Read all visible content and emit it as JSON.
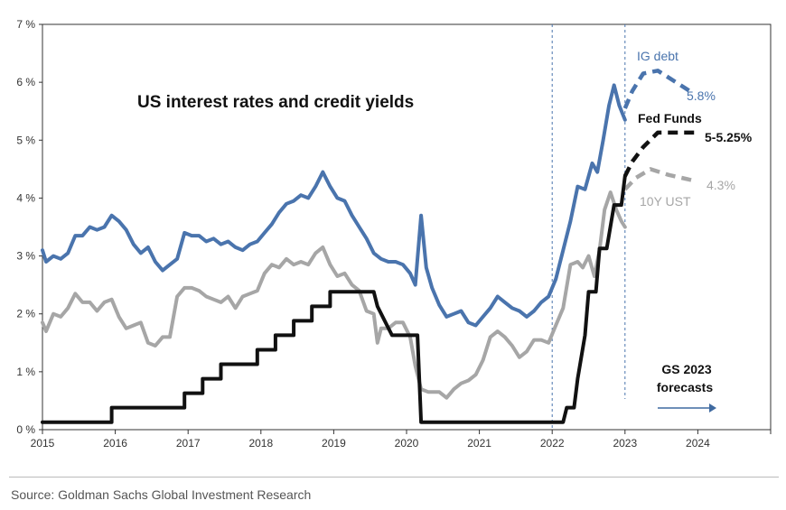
{
  "chart_data": {
    "type": "line",
    "title": "US interest rates and credit yields",
    "xlim": [
      2015,
      2025
    ],
    "ylim": [
      0,
      7
    ],
    "x_ticks": [
      "2015",
      "2016",
      "2017",
      "2018",
      "2019",
      "2020",
      "2021",
      "2022",
      "2023",
      "2024"
    ],
    "y_ticks": [
      "0 %",
      "1 %",
      "2 %",
      "3 %",
      "4 %",
      "5 %",
      "6 %",
      "7 %"
    ],
    "vlines": [
      2022.0,
      2023.0
    ],
    "annotation": {
      "line1": "GS 2023",
      "line2": "forecasts"
    },
    "series": [
      {
        "name": "IG debt",
        "color": "#4a74ad",
        "end_label": "5.8%",
        "values": [
          [
            2015.0,
            3.1
          ],
          [
            2015.05,
            2.9
          ],
          [
            2015.15,
            3.0
          ],
          [
            2015.25,
            2.95
          ],
          [
            2015.35,
            3.05
          ],
          [
            2015.45,
            3.35
          ],
          [
            2015.55,
            3.35
          ],
          [
            2015.65,
            3.5
          ],
          [
            2015.75,
            3.45
          ],
          [
            2015.85,
            3.5
          ],
          [
            2015.95,
            3.7
          ],
          [
            2016.05,
            3.6
          ],
          [
            2016.15,
            3.45
          ],
          [
            2016.25,
            3.2
          ],
          [
            2016.35,
            3.05
          ],
          [
            2016.45,
            3.15
          ],
          [
            2016.55,
            2.9
          ],
          [
            2016.65,
            2.75
          ],
          [
            2016.75,
            2.85
          ],
          [
            2016.85,
            2.95
          ],
          [
            2016.95,
            3.4
          ],
          [
            2017.05,
            3.35
          ],
          [
            2017.15,
            3.35
          ],
          [
            2017.25,
            3.25
          ],
          [
            2017.35,
            3.3
          ],
          [
            2017.45,
            3.2
          ],
          [
            2017.55,
            3.25
          ],
          [
            2017.65,
            3.15
          ],
          [
            2017.75,
            3.1
          ],
          [
            2017.85,
            3.2
          ],
          [
            2017.95,
            3.25
          ],
          [
            2018.05,
            3.4
          ],
          [
            2018.15,
            3.55
          ],
          [
            2018.25,
            3.75
          ],
          [
            2018.35,
            3.9
          ],
          [
            2018.45,
            3.95
          ],
          [
            2018.55,
            4.05
          ],
          [
            2018.65,
            4.0
          ],
          [
            2018.75,
            4.2
          ],
          [
            2018.85,
            4.45
          ],
          [
            2018.95,
            4.2
          ],
          [
            2019.05,
            4.0
          ],
          [
            2019.15,
            3.95
          ],
          [
            2019.25,
            3.7
          ],
          [
            2019.35,
            3.5
          ],
          [
            2019.45,
            3.3
          ],
          [
            2019.55,
            3.05
          ],
          [
            2019.65,
            2.95
          ],
          [
            2019.75,
            2.9
          ],
          [
            2019.85,
            2.9
          ],
          [
            2019.95,
            2.85
          ],
          [
            2020.05,
            2.7
          ],
          [
            2020.12,
            2.5
          ],
          [
            2020.2,
            3.7
          ],
          [
            2020.27,
            2.8
          ],
          [
            2020.35,
            2.45
          ],
          [
            2020.45,
            2.15
          ],
          [
            2020.55,
            1.95
          ],
          [
            2020.65,
            2.0
          ],
          [
            2020.75,
            2.05
          ],
          [
            2020.85,
            1.85
          ],
          [
            2020.95,
            1.8
          ],
          [
            2021.05,
            1.95
          ],
          [
            2021.15,
            2.1
          ],
          [
            2021.25,
            2.3
          ],
          [
            2021.35,
            2.2
          ],
          [
            2021.45,
            2.1
          ],
          [
            2021.55,
            2.05
          ],
          [
            2021.65,
            1.95
          ],
          [
            2021.75,
            2.05
          ],
          [
            2021.85,
            2.2
          ],
          [
            2021.95,
            2.3
          ],
          [
            2022.05,
            2.6
          ],
          [
            2022.15,
            3.1
          ],
          [
            2022.25,
            3.6
          ],
          [
            2022.35,
            4.2
          ],
          [
            2022.45,
            4.15
          ],
          [
            2022.55,
            4.6
          ],
          [
            2022.62,
            4.45
          ],
          [
            2022.7,
            5.0
          ],
          [
            2022.78,
            5.6
          ],
          [
            2022.85,
            5.95
          ],
          [
            2022.92,
            5.6
          ],
          [
            2023.0,
            5.35
          ]
        ],
        "forecast": [
          [
            2023.0,
            5.55
          ],
          [
            2023.1,
            5.85
          ],
          [
            2023.25,
            6.15
          ],
          [
            2023.45,
            6.2
          ],
          [
            2023.7,
            6.0
          ],
          [
            2023.95,
            5.8
          ]
        ]
      },
      {
        "name": "Fed Funds",
        "color": "#111111",
        "end_label": "5-5.25%",
        "values": [
          [
            2015.0,
            0.13
          ],
          [
            2015.95,
            0.13
          ],
          [
            2015.95,
            0.38
          ],
          [
            2016.95,
            0.38
          ],
          [
            2016.95,
            0.63
          ],
          [
            2017.2,
            0.63
          ],
          [
            2017.2,
            0.88
          ],
          [
            2017.45,
            0.88
          ],
          [
            2017.45,
            1.13
          ],
          [
            2017.95,
            1.13
          ],
          [
            2017.95,
            1.38
          ],
          [
            2018.2,
            1.38
          ],
          [
            2018.2,
            1.63
          ],
          [
            2018.45,
            1.63
          ],
          [
            2018.45,
            1.88
          ],
          [
            2018.7,
            1.88
          ],
          [
            2018.7,
            2.13
          ],
          [
            2018.95,
            2.13
          ],
          [
            2018.95,
            2.38
          ],
          [
            2019.55,
            2.38
          ],
          [
            2019.6,
            2.13
          ],
          [
            2019.7,
            1.88
          ],
          [
            2019.8,
            1.63
          ],
          [
            2020.15,
            1.63
          ],
          [
            2020.2,
            0.13
          ],
          [
            2022.15,
            0.13
          ],
          [
            2022.2,
            0.38
          ],
          [
            2022.3,
            0.38
          ],
          [
            2022.35,
            0.88
          ],
          [
            2022.45,
            1.63
          ],
          [
            2022.5,
            2.38
          ],
          [
            2022.6,
            2.38
          ],
          [
            2022.65,
            3.13
          ],
          [
            2022.75,
            3.13
          ],
          [
            2022.85,
            3.88
          ],
          [
            2022.95,
            3.88
          ],
          [
            2023.0,
            4.38
          ]
        ],
        "forecast": [
          [
            2023.0,
            4.38
          ],
          [
            2023.1,
            4.63
          ],
          [
            2023.25,
            4.88
          ],
          [
            2023.45,
            5.13
          ],
          [
            2023.95,
            5.13
          ]
        ]
      },
      {
        "name": "10Y UST",
        "color": "#a6a6a6",
        "end_label": "4.3%",
        "values": [
          [
            2015.0,
            1.85
          ],
          [
            2015.05,
            1.7
          ],
          [
            2015.15,
            2.0
          ],
          [
            2015.25,
            1.95
          ],
          [
            2015.35,
            2.1
          ],
          [
            2015.45,
            2.35
          ],
          [
            2015.55,
            2.2
          ],
          [
            2015.65,
            2.2
          ],
          [
            2015.75,
            2.05
          ],
          [
            2015.85,
            2.2
          ],
          [
            2015.95,
            2.25
          ],
          [
            2016.05,
            1.95
          ],
          [
            2016.15,
            1.75
          ],
          [
            2016.25,
            1.8
          ],
          [
            2016.35,
            1.85
          ],
          [
            2016.45,
            1.5
          ],
          [
            2016.55,
            1.45
          ],
          [
            2016.65,
            1.6
          ],
          [
            2016.75,
            1.6
          ],
          [
            2016.85,
            2.3
          ],
          [
            2016.95,
            2.45
          ],
          [
            2017.05,
            2.45
          ],
          [
            2017.15,
            2.4
          ],
          [
            2017.25,
            2.3
          ],
          [
            2017.35,
            2.25
          ],
          [
            2017.45,
            2.2
          ],
          [
            2017.55,
            2.3
          ],
          [
            2017.65,
            2.1
          ],
          [
            2017.75,
            2.3
          ],
          [
            2017.85,
            2.35
          ],
          [
            2017.95,
            2.4
          ],
          [
            2018.05,
            2.7
          ],
          [
            2018.15,
            2.85
          ],
          [
            2018.25,
            2.8
          ],
          [
            2018.35,
            2.95
          ],
          [
            2018.45,
            2.85
          ],
          [
            2018.55,
            2.9
          ],
          [
            2018.65,
            2.85
          ],
          [
            2018.75,
            3.05
          ],
          [
            2018.85,
            3.15
          ],
          [
            2018.95,
            2.85
          ],
          [
            2019.05,
            2.65
          ],
          [
            2019.15,
            2.7
          ],
          [
            2019.25,
            2.5
          ],
          [
            2019.35,
            2.4
          ],
          [
            2019.45,
            2.05
          ],
          [
            2019.55,
            2.0
          ],
          [
            2019.6,
            1.5
          ],
          [
            2019.65,
            1.75
          ],
          [
            2019.75,
            1.75
          ],
          [
            2019.85,
            1.85
          ],
          [
            2019.95,
            1.85
          ],
          [
            2020.05,
            1.6
          ],
          [
            2020.12,
            1.1
          ],
          [
            2020.2,
            0.7
          ],
          [
            2020.3,
            0.65
          ],
          [
            2020.45,
            0.65
          ],
          [
            2020.55,
            0.55
          ],
          [
            2020.65,
            0.7
          ],
          [
            2020.75,
            0.8
          ],
          [
            2020.85,
            0.85
          ],
          [
            2020.95,
            0.95
          ],
          [
            2021.05,
            1.2
          ],
          [
            2021.15,
            1.6
          ],
          [
            2021.25,
            1.7
          ],
          [
            2021.35,
            1.6
          ],
          [
            2021.45,
            1.45
          ],
          [
            2021.55,
            1.25
          ],
          [
            2021.65,
            1.35
          ],
          [
            2021.75,
            1.55
          ],
          [
            2021.85,
            1.55
          ],
          [
            2021.95,
            1.5
          ],
          [
            2022.05,
            1.8
          ],
          [
            2022.15,
            2.1
          ],
          [
            2022.25,
            2.85
          ],
          [
            2022.35,
            2.9
          ],
          [
            2022.42,
            2.8
          ],
          [
            2022.5,
            3.0
          ],
          [
            2022.58,
            2.65
          ],
          [
            2022.65,
            3.1
          ],
          [
            2022.72,
            3.8
          ],
          [
            2022.8,
            4.1
          ],
          [
            2022.88,
            3.8
          ],
          [
            2022.95,
            3.6
          ],
          [
            2023.0,
            3.5
          ]
        ],
        "forecast": [
          [
            2023.0,
            4.15
          ],
          [
            2023.15,
            4.35
          ],
          [
            2023.35,
            4.5
          ],
          [
            2023.6,
            4.4
          ],
          [
            2023.95,
            4.3
          ]
        ]
      }
    ]
  },
  "footer": {
    "source": "Source: Goldman Sachs Global Investment Research"
  }
}
